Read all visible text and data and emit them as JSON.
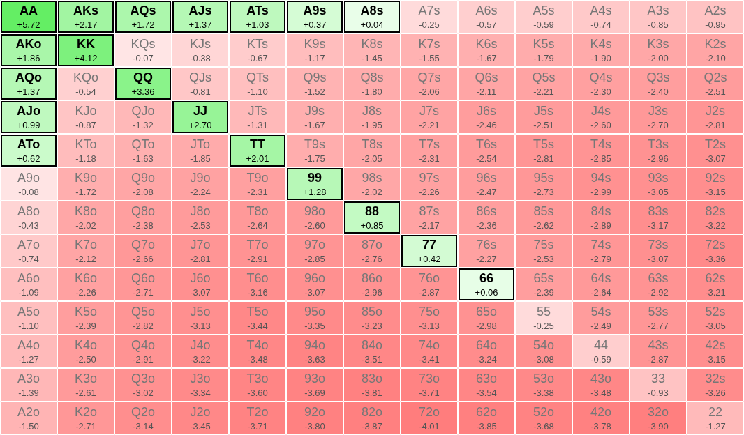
{
  "chart_data": {
    "type": "heatmap",
    "cell_labels": [
      [
        "+5.72",
        "+2.17",
        "+1.72",
        "+1.37",
        "+1.03",
        "+0.37",
        "+0.04",
        "-0.25",
        "-0.57",
        "-0.59",
        "-0.74",
        "-0.85",
        "-0.95"
      ],
      [
        "+1.86",
        "+4.12",
        "-0.07",
        "-0.38",
        "-0.67",
        "-1.17",
        "-1.45",
        "-1.55",
        "-1.67",
        "-1.79",
        "-1.90",
        "-2.00",
        "-2.10"
      ],
      [
        "+1.37",
        "-0.54",
        "+3.36",
        "-0.81",
        "-1.10",
        "-1.52",
        "-1.80",
        "-2.06",
        "-2.11",
        "-2.21",
        "-2.30",
        "-2.40",
        "-2.51"
      ],
      [
        "+0.99",
        "-0.87",
        "-1.32",
        "+2.70",
        "-1.31",
        "-1.67",
        "-1.95",
        "-2.21",
        "-2.46",
        "-2.51",
        "-2.60",
        "-2.70",
        "-2.81"
      ],
      [
        "+0.62",
        "-1.18",
        "-1.63",
        "-1.85",
        "+2.01",
        "-1.75",
        "-2.05",
        "-2.31",
        "-2.54",
        "-2.81",
        "-2.85",
        "-2.96",
        "-3.07"
      ],
      [
        "-0.08",
        "-1.72",
        "-2.08",
        "-2.24",
        "-2.31",
        "+1.28",
        "-2.02",
        "-2.26",
        "-2.47",
        "-2.73",
        "-2.99",
        "-3.05",
        "-3.15"
      ],
      [
        "-0.43",
        "-2.02",
        "-2.38",
        "-2.53",
        "-2.64",
        "-2.60",
        "+0.85",
        "-2.17",
        "-2.36",
        "-2.62",
        "-2.89",
        "-3.17",
        "-3.22"
      ],
      [
        "-0.74",
        "-2.12",
        "-2.66",
        "-2.81",
        "-2.91",
        "-2.85",
        "-2.76",
        "+0.42",
        "-2.27",
        "-2.53",
        "-2.79",
        "-3.07",
        "-3.36"
      ],
      [
        "-1.09",
        "-2.26",
        "-2.71",
        "-3.07",
        "-3.16",
        "-3.07",
        "-2.96",
        "-2.87",
        "+0.06",
        "-2.39",
        "-2.64",
        "-2.92",
        "-3.21"
      ],
      [
        "-1.10",
        "-2.39",
        "-2.82",
        "-3.13",
        "-3.44",
        "-3.35",
        "-3.23",
        "-3.13",
        "-2.98",
        "-0.25",
        "-2.49",
        "-2.77",
        "-3.05"
      ],
      [
        "-1.27",
        "-2.50",
        "-2.91",
        "-3.22",
        "-3.48",
        "-3.63",
        "-3.51",
        "-3.41",
        "-3.24",
        "-3.08",
        "-0.59",
        "-2.87",
        "-3.15"
      ],
      [
        "-1.39",
        "-2.61",
        "-3.02",
        "-3.34",
        "-3.60",
        "-3.69",
        "-3.81",
        "-3.71",
        "-3.54",
        "-3.38",
        "-3.48",
        "-0.93",
        "-3.26"
      ],
      [
        "-1.50",
        "-2.71",
        "-3.14",
        "-3.45",
        "-3.71",
        "-3.80",
        "-3.87",
        "-4.01",
        "-3.85",
        "-3.68",
        "-3.78",
        "-3.90",
        "-1.27"
      ]
    ],
    "categories": [
      null,
      null,
      null,
      null,
      null,
      null,
      null,
      null,
      null,
      null,
      null,
      null,
      null
    ],
    "y_categories": [
      null,
      null,
      null,
      null,
      null,
      null,
      null,
      null,
      null,
      null,
      null,
      null,
      null
    ],
    "cells": [
      [
        5.72,
        2.17,
        1.72,
        1.37,
        1.03,
        0.37,
        0.04,
        -0.25,
        -0.57,
        -0.59,
        -0.74,
        -0.85,
        -0.95
      ],
      [
        1.86,
        4.12,
        -0.07,
        -0.38,
        -0.67,
        -1.17,
        -1.45,
        -1.55,
        -1.67,
        -1.79,
        -1.9,
        -2.0,
        -2.1
      ],
      [
        1.37,
        -0.54,
        3.36,
        -0.81,
        -1.1,
        -1.52,
        -1.8,
        -2.06,
        -2.11,
        -2.21,
        -2.3,
        -2.4,
        -2.51
      ],
      [
        0.99,
        -0.87,
        -1.32,
        2.7,
        -1.31,
        -1.67,
        -1.95,
        -2.21,
        -2.46,
        -2.51,
        -2.6,
        -2.7,
        -2.81
      ],
      [
        0.62,
        -1.18,
        -1.63,
        -1.85,
        2.01,
        -1.75,
        -2.05,
        -2.31,
        -2.54,
        -2.81,
        -2.85,
        -2.96,
        -3.07
      ],
      [
        -0.08,
        -1.72,
        -2.08,
        -2.24,
        -2.31,
        1.28,
        -2.02,
        -2.26,
        -2.47,
        -2.73,
        -2.99,
        -3.05,
        -3.15
      ],
      [
        -0.43,
        -2.02,
        -2.38,
        -2.53,
        -2.64,
        -2.6,
        0.85,
        -2.17,
        -2.36,
        -2.62,
        -2.89,
        -3.17,
        -3.22
      ],
      [
        -0.74,
        -2.12,
        -2.66,
        -2.81,
        -2.91,
        -2.85,
        -2.76,
        0.42,
        -2.27,
        -2.53,
        -2.79,
        -3.07,
        -3.36
      ],
      [
        -1.09,
        -2.26,
        -2.71,
        -3.07,
        -3.16,
        -3.07,
        -2.96,
        -2.87,
        0.06,
        -2.39,
        -2.64,
        -2.92,
        -3.21
      ],
      [
        -1.1,
        -2.39,
        -2.82,
        -3.13,
        -3.44,
        -3.35,
        -3.23,
        -3.13,
        -2.98,
        -0.25,
        -2.49,
        -2.77,
        -3.05
      ],
      [
        -1.27,
        -2.5,
        -2.91,
        -3.22,
        -3.48,
        -3.63,
        -3.51,
        -3.41,
        -3.24,
        -3.08,
        -0.59,
        -2.87,
        -3.15
      ],
      [
        -1.39,
        -2.61,
        -3.02,
        -3.34,
        -3.6,
        -3.69,
        -3.81,
        -3.71,
        -3.54,
        -3.38,
        -3.48,
        -0.93,
        -3.26
      ],
      [
        -1.5,
        -2.71,
        -3.14,
        -3.45,
        -3.71,
        -3.8,
        -3.87,
        -4.01,
        -3.85,
        -3.68,
        -3.78,
        -3.9,
        -1.27
      ]
    ],
    "annotations": [
      "AA",
      "AKs",
      "AQs",
      "AJs",
      "ATs",
      "A9s",
      "A8s",
      "A7s",
      "A6s",
      "A5s",
      "A4s",
      "A3s",
      "A2s",
      "AKo",
      "KK",
      "KQs",
      "KJs",
      "KTs",
      "K9s",
      "K8s",
      "K7s",
      "K6s",
      "K5s",
      "K4s",
      "K3s",
      "K2s",
      "AQo",
      "KQo",
      "QQ",
      "QJs",
      "QTs",
      "Q9s",
      "Q8s",
      "Q7s",
      "Q6s",
      "Q5s",
      "Q4s",
      "Q3s",
      "Q2s",
      "AJo",
      "KJo",
      "QJo",
      "JJ",
      "JTs",
      "J9s",
      "J8s",
      "J7s",
      "J6s",
      "J5s",
      "J4s",
      "J3s",
      "J2s",
      "ATo",
      "KTo",
      "QTo",
      "JTo",
      "TT",
      "T9s",
      "T8s",
      "T7s",
      "T6s",
      "T5s",
      "T4s",
      "T3s",
      "T2s",
      "A9o",
      "K9o",
      "Q9o",
      "J9o",
      "T9o",
      "99",
      "98s",
      "97s",
      "96s",
      "95s",
      "94s",
      "93s",
      "92s",
      "A8o",
      "K8o",
      "Q8o",
      "J8o",
      "T8o",
      "98o",
      "88",
      "87s",
      "86s",
      "85s",
      "84s",
      "83s",
      "82s",
      "A7o",
      "K7o",
      "Q7o",
      "J7o",
      "T7o",
      "97o",
      "87o",
      "77",
      "76s",
      "75s",
      "74s",
      "73s",
      "72s",
      "A6o",
      "K6o",
      "Q6o",
      "J6o",
      "T6o",
      "96o",
      "86o",
      "76o",
      "66",
      "65s",
      "64s",
      "63s",
      "62s",
      "A5o",
      "K5o",
      "Q5o",
      "J5o",
      "T5o",
      "95o",
      "85o",
      "75o",
      "65o",
      "55",
      "54s",
      "53s",
      "52s",
      "A4o",
      "K4o",
      "Q4o",
      "J4o",
      "T4o",
      "94o",
      "84o",
      "74o",
      "64o",
      "54o",
      "44",
      "43s",
      "42s",
      "A3o",
      "K3o",
      "Q3o",
      "J3o",
      "T3o",
      "93o",
      "83o",
      "73o",
      "63o",
      "53o",
      "43o",
      "33",
      "32s",
      "A2o",
      "K2o",
      "Q2o",
      "J2o",
      "T2o",
      "92o",
      "82o",
      "72o",
      "62o",
      "52o",
      "42o",
      "32o",
      "22"
    ]
  }
}
